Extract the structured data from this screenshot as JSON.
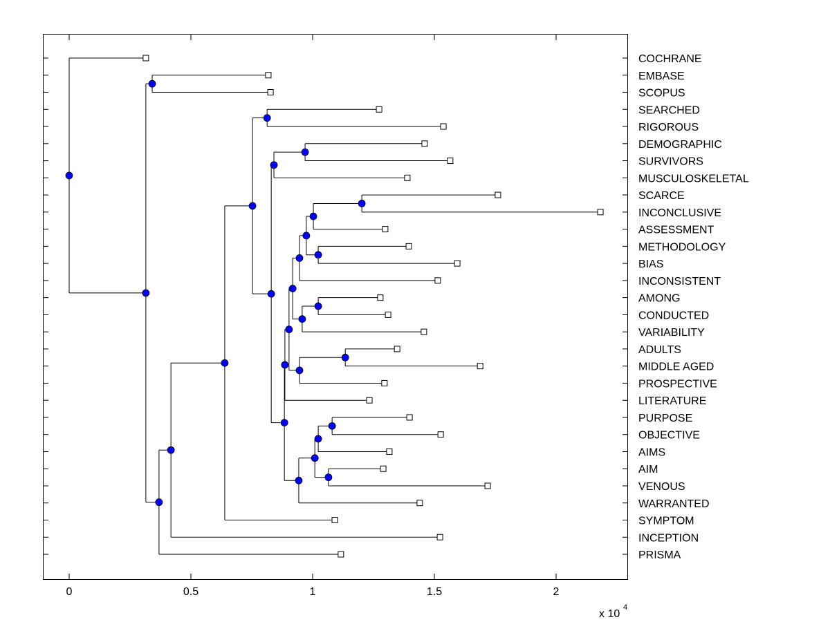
{
  "chart_data": {
    "type": "dendrogram",
    "title": "",
    "xlabel": "",
    "ylabel": "",
    "x_multiplier_label": "x 10",
    "x_multiplier_exponent": "4",
    "xlim": [
      -0.11,
      2.3
    ],
    "xticks": [
      0,
      0.5,
      1,
      1.5,
      2
    ],
    "xtick_labels": [
      "0",
      "0.5",
      "1",
      "1.5",
      "2"
    ],
    "grid": false,
    "node_color": "#0000ff",
    "leaves": [
      {
        "label": "COCHRANE",
        "value": 0.315
      },
      {
        "label": "EMBASE",
        "value": 0.818
      },
      {
        "label": "SCOPUS",
        "value": 0.827
      },
      {
        "label": "SEARCHED",
        "value": 1.273
      },
      {
        "label": "RIGOROUS",
        "value": 1.537
      },
      {
        "label": "DEMOGRAPHIC",
        "value": 1.46
      },
      {
        "label": "SURVIVORS",
        "value": 1.565
      },
      {
        "label": "MUSCULOSKELETAL",
        "value": 1.389
      },
      {
        "label": "SCARCE",
        "value": 1.761
      },
      {
        "label": "INCONCLUSIVE",
        "value": 2.182
      },
      {
        "label": "ASSESSMENT",
        "value": 1.298
      },
      {
        "label": "METHODOLOGY",
        "value": 1.395
      },
      {
        "label": "BIAS",
        "value": 1.594
      },
      {
        "label": "INCONSISTENT",
        "value": 1.514
      },
      {
        "label": "AMONG",
        "value": 1.278
      },
      {
        "label": "CONDUCTED",
        "value": 1.31
      },
      {
        "label": "VARIABILITY",
        "value": 1.457
      },
      {
        "label": "ADULTS",
        "value": 1.347
      },
      {
        "label": "MIDDLE AGED",
        "value": 1.688
      },
      {
        "label": "PROSPECTIVE",
        "value": 1.295
      },
      {
        "label": "LITERATURE",
        "value": 1.233
      },
      {
        "label": "PURPOSE",
        "value": 1.398
      },
      {
        "label": "OBJECTIVE",
        "value": 1.526
      },
      {
        "label": "AIMS",
        "value": 1.315
      },
      {
        "label": "AIM",
        "value": 1.29
      },
      {
        "label": "VENOUS",
        "value": 1.719
      },
      {
        "label": "WARRANTED",
        "value": 1.44
      },
      {
        "label": "SYMPTOM",
        "value": 1.091
      },
      {
        "label": "INCEPTION",
        "value": 1.523
      },
      {
        "label": "PRISMA",
        "value": 1.116
      }
    ],
    "internal_nodes": [
      {
        "id": "root",
        "value": 0.0,
        "children": [
          "L0",
          "n_main"
        ]
      },
      {
        "id": "n_main",
        "value": 0.315,
        "children": [
          "n_es",
          "n_big"
        ]
      },
      {
        "id": "n_es",
        "value": 0.341,
        "children": [
          "L1",
          "L2"
        ]
      },
      {
        "id": "n_big",
        "value": 0.369,
        "children": [
          "n_inc",
          "L29"
        ]
      },
      {
        "id": "n_inc",
        "value": 0.418,
        "children": [
          "n_sym",
          "L28"
        ]
      },
      {
        "id": "n_sym",
        "value": 0.639,
        "children": [
          "n_a",
          "L27"
        ]
      },
      {
        "id": "n_a",
        "value": 0.753,
        "children": [
          "n_sr",
          "n_b"
        ]
      },
      {
        "id": "n_sr",
        "value": 0.813,
        "children": [
          "L3",
          "L4"
        ]
      },
      {
        "id": "n_b",
        "value": 0.83,
        "children": [
          "n_dsm",
          "n_c"
        ]
      },
      {
        "id": "n_dsm",
        "value": 0.841,
        "children": [
          "n_ds",
          "L7"
        ]
      },
      {
        "id": "n_ds",
        "value": 0.969,
        "children": [
          "L5",
          "L6"
        ]
      },
      {
        "id": "n_c",
        "value": 0.884,
        "children": [
          "n_d",
          "n_pa"
        ]
      },
      {
        "id": "n_d",
        "value": 0.886,
        "children": [
          "n_e",
          "L20"
        ]
      },
      {
        "id": "n_e",
        "value": 0.903,
        "children": [
          "n_f",
          "n_amp"
        ]
      },
      {
        "id": "n_f",
        "value": 0.918,
        "children": [
          "n_g",
          "n_acv"
        ]
      },
      {
        "id": "n_g",
        "value": 0.946,
        "children": [
          "n_h",
          "L13"
        ]
      },
      {
        "id": "n_h",
        "value": 0.974,
        "children": [
          "n_i",
          "n_mb"
        ]
      },
      {
        "id": "n_i",
        "value": 1.003,
        "children": [
          "n_si",
          "L10"
        ]
      },
      {
        "id": "n_si",
        "value": 1.202,
        "children": [
          "L8",
          "L9"
        ]
      },
      {
        "id": "n_mb",
        "value": 1.023,
        "children": [
          "L11",
          "L12"
        ]
      },
      {
        "id": "n_acv",
        "value": 0.957,
        "children": [
          "n_ac",
          "L16"
        ]
      },
      {
        "id": "n_ac",
        "value": 1.023,
        "children": [
          "L14",
          "L15"
        ]
      },
      {
        "id": "n_amp",
        "value": 0.946,
        "children": [
          "n_am",
          "L19"
        ]
      },
      {
        "id": "n_am",
        "value": 1.134,
        "children": [
          "L17",
          "L18"
        ]
      },
      {
        "id": "n_pa",
        "value": 0.943,
        "children": [
          "n_poa",
          "L26"
        ]
      },
      {
        "id": "n_poa",
        "value": 1.009,
        "children": [
          "n_poa2",
          "n_av"
        ]
      },
      {
        "id": "n_poa2",
        "value": 1.023,
        "children": [
          "n_po",
          "L23"
        ]
      },
      {
        "id": "n_po",
        "value": 1.08,
        "children": [
          "L21",
          "L22"
        ]
      },
      {
        "id": "n_av",
        "value": 1.065,
        "children": [
          "L24",
          "L25"
        ]
      }
    ]
  }
}
